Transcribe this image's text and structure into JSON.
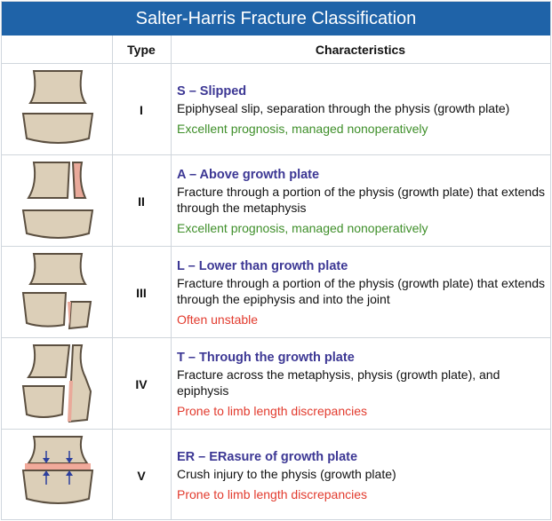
{
  "title": "Salter-Harris Fracture Classification",
  "headers": {
    "type": "Type",
    "characteristics": "Characteristics"
  },
  "colors": {
    "title_bg": "#1f63a8",
    "mnemonic": "#3c3794",
    "good": "#3f8f2a",
    "bad": "#e23b2e",
    "bone": "#dccfb8"
  },
  "rows": [
    {
      "type": "I",
      "mnemonic": "S – Slipped",
      "description": "Epiphyseal slip, separation through the physis (growth plate)",
      "prognosis": "Excellent prognosis, managed nonoperatively",
      "prognosis_color": "#3f8f2a"
    },
    {
      "type": "II",
      "mnemonic": "A  – Above growth plate",
      "description": "Fracture through a portion of the physis (growth plate) that extends through the metaphysis",
      "prognosis": "Excellent prognosis, managed nonoperatively",
      "prognosis_color": "#3f8f2a"
    },
    {
      "type": "III",
      "mnemonic": "L – Lower than growth plate",
      "description": "Fracture through a portion of the physis (growth plate) that extends through the epiphysis and into the joint",
      "prognosis": "Often unstable",
      "prognosis_color": "#e23b2e"
    },
    {
      "type": "IV",
      "mnemonic": "T – Through the growth plate",
      "description": "Fracture across the metaphysis, physis (growth plate), and epiphysis",
      "prognosis": "Prone to limb length discrepancies",
      "prognosis_color": "#e23b2e"
    },
    {
      "type": "V",
      "mnemonic": "ER – ERasure of growth plate",
      "description": "Crush injury to the physis (growth plate)",
      "prognosis": "Prone to limb length discrepancies",
      "prognosis_color": "#e23b2e"
    }
  ]
}
